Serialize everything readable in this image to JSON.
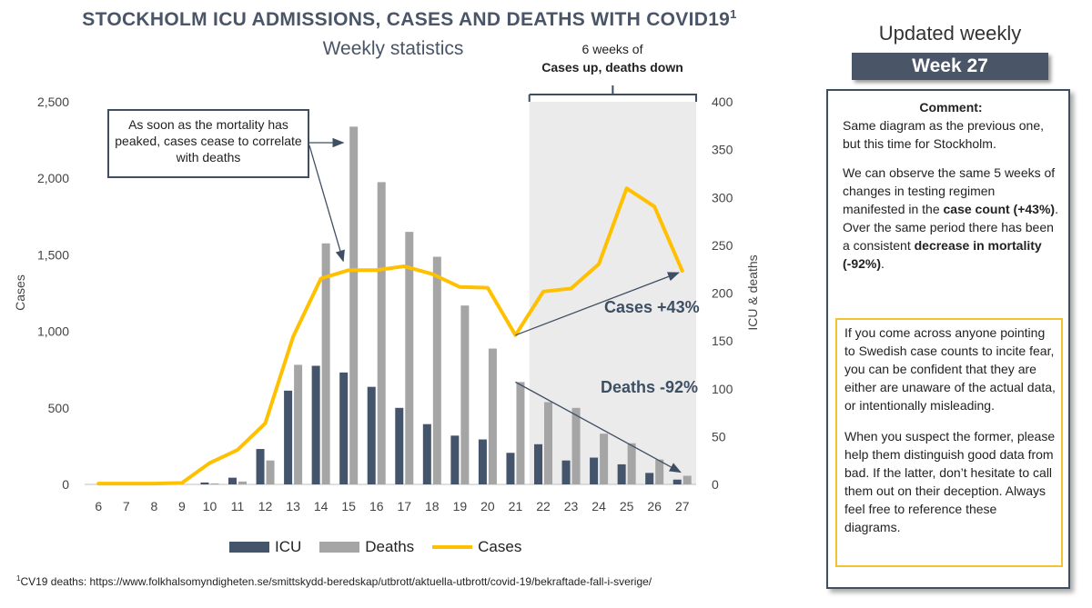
{
  "header": {
    "title": "STOCKHOLM ICU ADMISSIONS, CASES AND DEATHS WITH COVID19",
    "title_sup": "1",
    "subtitle": "Weekly statistics"
  },
  "chart_data": {
    "type": "bar",
    "title": "STOCKHOLM ICU ADMISSIONS, CASES AND DEATHS WITH COVID19",
    "x": [
      6,
      7,
      8,
      9,
      10,
      11,
      12,
      13,
      14,
      15,
      16,
      17,
      18,
      19,
      20,
      21,
      22,
      23,
      24,
      25,
      26,
      27
    ],
    "series": [
      {
        "name": "ICU",
        "type": "bar",
        "axis": "right",
        "color": "#44546a",
        "values": [
          0,
          0,
          0,
          0,
          2,
          7,
          37,
          98,
          124,
          117,
          102,
          80,
          63,
          51,
          47,
          33,
          42,
          25,
          28,
          21,
          12,
          5
        ]
      },
      {
        "name": "Deaths",
        "type": "bar",
        "axis": "right",
        "color": "#a5a5a5",
        "values": [
          0,
          0,
          0,
          0,
          1,
          3,
          25,
          125,
          252,
          374,
          316,
          264,
          238,
          187,
          142,
          107,
          86,
          80,
          53,
          43,
          26,
          9
        ]
      },
      {
        "name": "Cases",
        "type": "line",
        "axis": "left",
        "color": "#ffc000",
        "values": [
          5,
          5,
          5,
          10,
          140,
          225,
          400,
          965,
          1345,
          1400,
          1400,
          1425,
          1375,
          1290,
          1285,
          975,
          1260,
          1280,
          1440,
          1935,
          1815,
          1395
        ]
      }
    ],
    "y_left": {
      "label": "Cases",
      "range": [
        0,
        2500
      ],
      "ticks": [
        "0",
        "500",
        "1,000",
        "1,500",
        "2,000",
        "2,500"
      ]
    },
    "y_right": {
      "label": "ICU & deaths",
      "range": [
        0,
        400
      ],
      "ticks": [
        "0",
        "50",
        "100",
        "150",
        "200",
        "250",
        "300",
        "350",
        "400"
      ]
    },
    "shaded_region": {
      "from_week": 22,
      "to_week": 27
    },
    "legend": {
      "placement": "bottom"
    },
    "grid": false
  },
  "annotations": {
    "shade_line1": "6 weeks of",
    "shade_line2": "Cases up, deaths down",
    "box_text": "As soon as the mortality has peaked, cases cease to correlate with deaths",
    "cases_change": "Cases +43%",
    "deaths_change": "Deaths -92%"
  },
  "legend": {
    "icu": "ICU",
    "deaths": "Deaths",
    "cases": "Cases"
  },
  "footnote": {
    "sup": "1",
    "text": "CV19 deaths: https://www.folkhalsomyndigheten.se/smittskydd-beredskap/utbrott/aktuella-utbrott/covid-19/bekraftade-fall-i-sverige/"
  },
  "side_panel": {
    "updated_label": "Updated weekly",
    "week_label": "Week 27",
    "comment_heading": "Comment:",
    "p1": "Same diagram as the previous one, but this time for Stockholm.",
    "p2_a": "We can observe the same 5 weeks of changes in testing regimen manifested in the ",
    "p2_b": "case count (+43%)",
    "p2_c": ". Over the same period there has been a consistent ",
    "p2_d": "decrease in mortality (-92%)",
    "p2_e": ".",
    "warn_p1": "If you come across anyone pointing to Swedish case counts to incite fear, you can be confident that they are either are unaware of the actual data, or intentionally misleading.",
    "warn_p2": "When you suspect the former, please help them distinguish good data from bad. If the latter, don’t hesitate to call them out on their deception. Always feel free to reference these diagrams."
  }
}
